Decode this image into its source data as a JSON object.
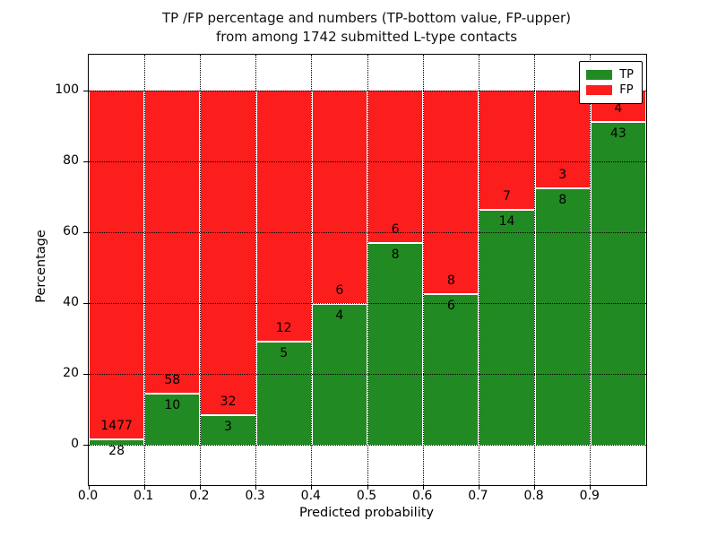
{
  "figure": {
    "title_line1": "TP /FP percentage and numbers (TP-bottom value, FP-upper)",
    "title_line2": "from among 1742 submitted L-type contacts",
    "xlabel": "Predicted probability",
    "ylabel": "Percentage",
    "background_color": "#ffffff"
  },
  "legend": {
    "position": "upper-right",
    "items": [
      {
        "label": "TP",
        "color": "#228a22"
      },
      {
        "label": "FP",
        "color": "#fc1d1d"
      }
    ]
  },
  "chart_data": {
    "type": "bar",
    "subtype": "stacked-100-percent",
    "title": "TP /FP percentage and numbers (TP-bottom value, FP-upper) from among 1742 submitted L-type contacts",
    "xlabel": "Predicted probability",
    "ylabel": "Percentage",
    "total_contacts": 1742,
    "bin_edges": [
      0.0,
      0.1,
      0.2,
      0.3,
      0.4,
      0.5,
      0.6,
      0.7,
      0.8,
      0.9,
      1.0
    ],
    "x_tick_labels": [
      "0.0",
      "0.1",
      "0.2",
      "0.3",
      "0.4",
      "0.5",
      "0.6",
      "0.7",
      "0.8",
      "0.9"
    ],
    "y_tick_values": [
      0,
      20,
      40,
      60,
      80,
      100
    ],
    "xlim": [
      0.0,
      1.0
    ],
    "ylim": [
      -11.5,
      110.0
    ],
    "grid": {
      "style": "dotted",
      "color": "#000000",
      "above_bars": true
    },
    "legend_position": "upper right",
    "series": [
      {
        "name": "TP",
        "color": "#228a22",
        "counts": [
          28,
          10,
          3,
          5,
          4,
          8,
          6,
          14,
          8,
          43
        ]
      },
      {
        "name": "FP",
        "color": "#fc1d1d",
        "counts": [
          1477,
          58,
          32,
          12,
          6,
          6,
          8,
          7,
          3,
          4
        ]
      }
    ],
    "tp_percent": [
      1.86,
      14.71,
      8.57,
      29.41,
      40.0,
      57.14,
      42.86,
      66.67,
      72.73,
      91.49
    ]
  }
}
